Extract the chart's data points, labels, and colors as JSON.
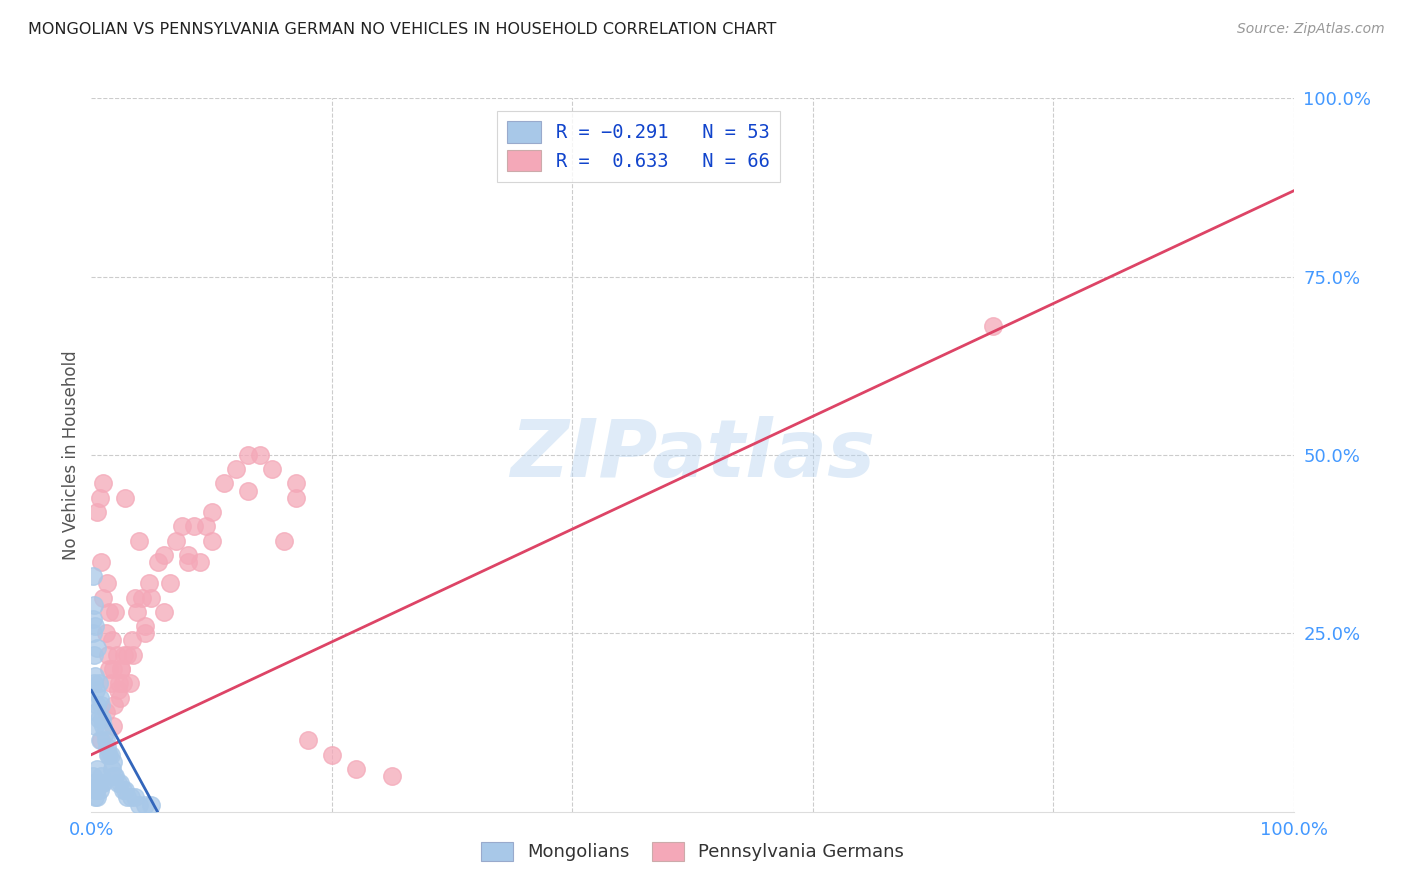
{
  "title": "MONGOLIAN VS PENNSYLVANIA GERMAN NO VEHICLES IN HOUSEHOLD CORRELATION CHART",
  "source": "Source: ZipAtlas.com",
  "ylabel": "No Vehicles in Household",
  "watermark": "ZIPatlas",
  "mongolian_R": -0.291,
  "mongolian_N": 53,
  "pennger_R": 0.633,
  "pennger_N": 66,
  "mongolian_color": "#a8c8e8",
  "pennger_color": "#f4a8b8",
  "mongolian_line_color": "#3366bb",
  "pennger_line_color": "#dd4466",
  "background_color": "#ffffff",
  "grid_color": "#cccccc",
  "title_color": "#222222",
  "axis_label_color": "#555555",
  "right_tick_color": "#4499ff",
  "bottom_tick_color": "#4499ff",
  "xlim": [
    0.0,
    1.0
  ],
  "ylim": [
    0.0,
    1.0
  ],
  "mongolian_x": [
    0.001,
    0.001,
    0.001,
    0.001,
    0.002,
    0.002,
    0.002,
    0.002,
    0.003,
    0.003,
    0.003,
    0.003,
    0.004,
    0.004,
    0.004,
    0.005,
    0.005,
    0.005,
    0.006,
    0.006,
    0.006,
    0.007,
    0.007,
    0.007,
    0.008,
    0.008,
    0.009,
    0.009,
    0.01,
    0.01,
    0.011,
    0.012,
    0.013,
    0.014,
    0.015,
    0.016,
    0.017,
    0.018,
    0.019,
    0.02,
    0.022,
    0.024,
    0.026,
    0.028,
    0.03,
    0.033,
    0.036,
    0.04,
    0.045,
    0.05,
    0.003,
    0.004,
    0.005
  ],
  "mongolian_y": [
    0.33,
    0.27,
    0.25,
    0.05,
    0.29,
    0.22,
    0.18,
    0.04,
    0.26,
    0.19,
    0.12,
    0.03,
    0.17,
    0.14,
    0.03,
    0.23,
    0.15,
    0.06,
    0.18,
    0.13,
    0.04,
    0.16,
    0.1,
    0.03,
    0.15,
    0.05,
    0.13,
    0.04,
    0.12,
    0.04,
    0.11,
    0.1,
    0.09,
    0.08,
    0.08,
    0.08,
    0.06,
    0.07,
    0.05,
    0.05,
    0.04,
    0.04,
    0.03,
    0.03,
    0.02,
    0.02,
    0.02,
    0.01,
    0.01,
    0.01,
    0.02,
    0.03,
    0.02
  ],
  "pennger_x": [
    0.005,
    0.007,
    0.008,
    0.01,
    0.01,
    0.012,
    0.013,
    0.014,
    0.015,
    0.015,
    0.016,
    0.017,
    0.018,
    0.019,
    0.02,
    0.021,
    0.022,
    0.023,
    0.024,
    0.025,
    0.026,
    0.027,
    0.028,
    0.03,
    0.032,
    0.034,
    0.036,
    0.038,
    0.04,
    0.042,
    0.045,
    0.048,
    0.05,
    0.055,
    0.06,
    0.065,
    0.07,
    0.075,
    0.08,
    0.085,
    0.09,
    0.095,
    0.1,
    0.11,
    0.12,
    0.13,
    0.14,
    0.15,
    0.16,
    0.17,
    0.18,
    0.2,
    0.22,
    0.25,
    0.75,
    0.008,
    0.012,
    0.018,
    0.025,
    0.035,
    0.045,
    0.06,
    0.08,
    0.1,
    0.13,
    0.17
  ],
  "pennger_y": [
    0.42,
    0.44,
    0.35,
    0.3,
    0.46,
    0.25,
    0.32,
    0.22,
    0.28,
    0.2,
    0.18,
    0.24,
    0.2,
    0.15,
    0.28,
    0.22,
    0.17,
    0.18,
    0.16,
    0.2,
    0.18,
    0.22,
    0.44,
    0.22,
    0.18,
    0.24,
    0.3,
    0.28,
    0.38,
    0.3,
    0.26,
    0.32,
    0.3,
    0.35,
    0.36,
    0.32,
    0.38,
    0.4,
    0.36,
    0.4,
    0.35,
    0.4,
    0.42,
    0.46,
    0.48,
    0.5,
    0.5,
    0.48,
    0.38,
    0.44,
    0.1,
    0.08,
    0.06,
    0.05,
    0.68,
    0.1,
    0.14,
    0.12,
    0.2,
    0.22,
    0.25,
    0.28,
    0.35,
    0.38,
    0.45,
    0.46
  ],
  "pennger_line_x0": 0.0,
  "pennger_line_y0": 0.08,
  "pennger_line_x1": 1.0,
  "pennger_line_y1": 0.87,
  "mongolian_line_x0": 0.0,
  "mongolian_line_y0": 0.17,
  "mongolian_line_x1": 0.055,
  "mongolian_line_y1": 0.0
}
